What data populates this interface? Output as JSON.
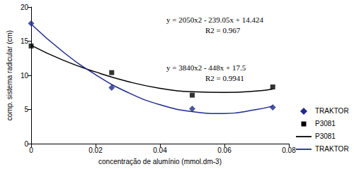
{
  "chart_data": {
    "type": "scatter",
    "x_label": "concentração de alumínio (mmol.dm-3)",
    "y_label": "comp. sistema radicular (cm)",
    "xlim": [
      0,
      0.08
    ],
    "xticks": [
      0,
      0.02,
      0.04,
      0.06,
      0.08
    ],
    "ylim": [
      0,
      20
    ],
    "yticks": [
      0,
      5,
      10,
      15,
      20
    ],
    "grid": false,
    "legend": "right",
    "annotations": [
      "y = 2050x2 - 239.05x + 14.424",
      "R2 = 0.967",
      "y = 3840x2 - 448x + 17.5",
      "R2 = 0.9941"
    ],
    "series": [
      {
        "name": "TRAKTOR",
        "type": "scatter",
        "marker": "diamond",
        "color": "#1f2a8c",
        "x": [
          0,
          0.025,
          0.05,
          0.075
        ],
        "values": [
          17.6,
          8.2,
          5.1,
          5.3
        ]
      },
      {
        "name": "P3081",
        "type": "scatter",
        "marker": "square",
        "color": "#000000",
        "x": [
          0,
          0.025,
          0.05,
          0.075
        ],
        "values": [
          14.3,
          10.4,
          7.1,
          8.3
        ]
      },
      {
        "name": "P3081",
        "type": "line",
        "marker": "none",
        "line_style": "solid",
        "color": "#000000",
        "x": [
          0,
          0.01,
          0.02,
          0.03,
          0.04,
          0.05,
          0.06,
          0.07,
          0.075
        ],
        "values": [
          14.4,
          12.2,
          10.5,
          9.1,
          8.1,
          7.6,
          7.5,
          7.7,
          8.0
        ]
      },
      {
        "name": "TRAKTOR",
        "type": "line",
        "marker": "none",
        "line_style": "solid",
        "color": "#1f2a8c",
        "x": [
          0,
          0.01,
          0.02,
          0.03,
          0.04,
          0.05,
          0.06,
          0.07,
          0.075
        ],
        "values": [
          17.5,
          13.4,
          10.1,
          7.5,
          5.7,
          4.7,
          4.4,
          5.0,
          5.5
        ]
      }
    ]
  }
}
